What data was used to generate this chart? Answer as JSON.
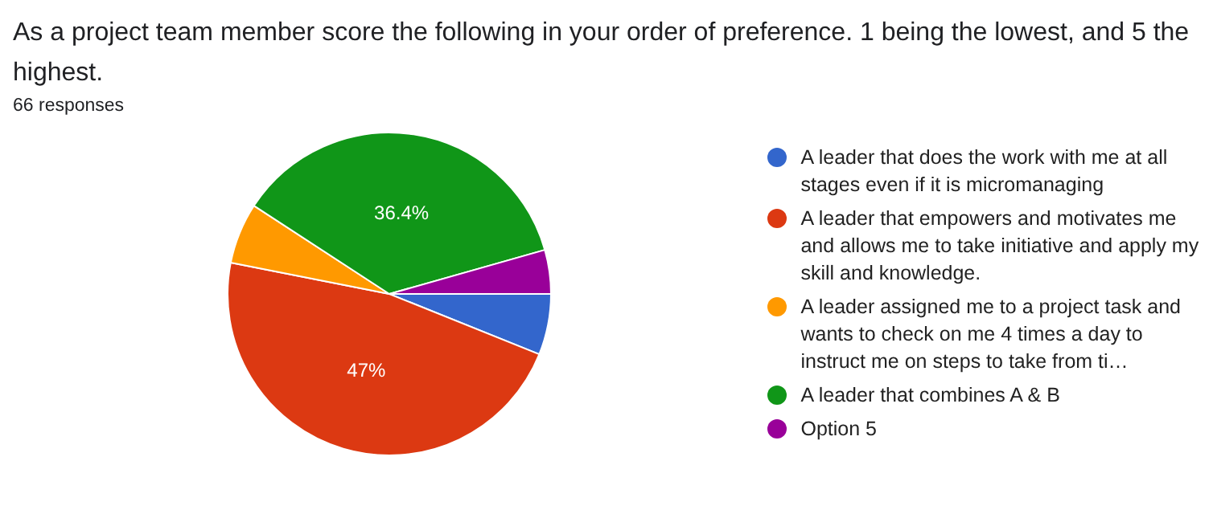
{
  "chart_data": {
    "type": "pie",
    "title": "As a project team member score the following in your order of preference. 1 being the lowest, and 5 the highest.",
    "subtitle": "66 responses",
    "categories": [
      "A leader that does the work with me at all stages even if it is micromanaging",
      "A leader that empowers and motivates me and allows me to take initiative and apply my skill and knowledge.",
      "A leader assigned me to a project task and wants to check on me 4 times a day to instruct me on steps to take from ti…",
      "A leader that combines A & B",
      "Option 5"
    ],
    "values": [
      6.1,
      47,
      6.1,
      36.4,
      4.4
    ],
    "colors": [
      "#3366cc",
      "#dc3912",
      "#ff9900",
      "#109618",
      "#990099"
    ],
    "value_labels": [
      null,
      "47%",
      null,
      "36.4%",
      null
    ],
    "legend": "right"
  }
}
